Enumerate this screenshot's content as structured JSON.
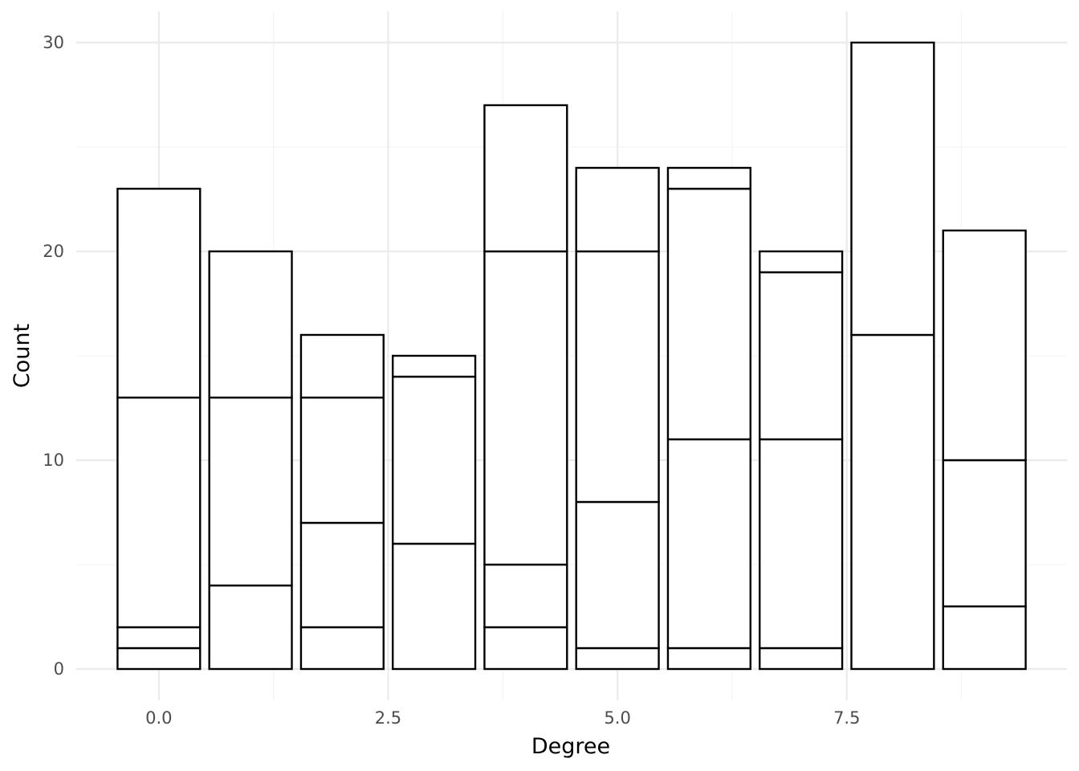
{
  "chart_data": {
    "type": "bar",
    "stacked": true,
    "xlabel": "Degree",
    "ylabel": "Count",
    "xlim": [
      -0.9,
      9.9
    ],
    "ylim": [
      -1.5,
      31.5
    ],
    "x_ticks": [
      0.0,
      2.5,
      5.0,
      7.5
    ],
    "x_tick_labels": [
      "0.0",
      "2.5",
      "5.0",
      "7.5"
    ],
    "y_ticks": [
      0,
      10,
      20,
      30
    ],
    "y_tick_labels": [
      "0",
      "10",
      "20",
      "30"
    ],
    "grid": true,
    "legend": "none",
    "bar_fill": "#ffffff",
    "bar_outline": "#000000",
    "bars": [
      {
        "x": 0,
        "boundaries": [
          1,
          2,
          13,
          23
        ]
      },
      {
        "x": 1,
        "boundaries": [
          4,
          13,
          20
        ]
      },
      {
        "x": 2,
        "boundaries": [
          2,
          7,
          13,
          16
        ]
      },
      {
        "x": 3,
        "boundaries": [
          6,
          14,
          15
        ]
      },
      {
        "x": 4,
        "boundaries": [
          2,
          5,
          20,
          27
        ]
      },
      {
        "x": 5,
        "boundaries": [
          1,
          8,
          20,
          24
        ]
      },
      {
        "x": 6,
        "boundaries": [
          1,
          11,
          23,
          24
        ]
      },
      {
        "x": 7,
        "boundaries": [
          1,
          11,
          19,
          20
        ]
      },
      {
        "x": 8,
        "boundaries": [
          16,
          30
        ]
      },
      {
        "x": 9,
        "boundaries": [
          3,
          10,
          21
        ]
      }
    ]
  }
}
